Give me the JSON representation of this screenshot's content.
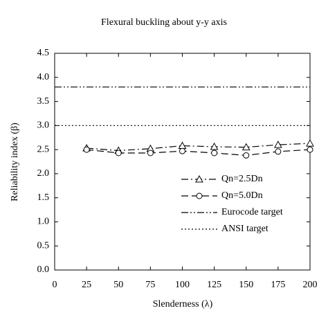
{
  "chart_data": {
    "type": "line",
    "title": "Flexural buckling about y-y axis",
    "x_label": "Slenderness (λ)",
    "y_label": "Reliability index (β)",
    "x": [
      25,
      50,
      75,
      100,
      125,
      150,
      175,
      200
    ],
    "series": [
      {
        "name": "Qn=2.5Dn",
        "color": "#000000",
        "marker": "triangle",
        "dash": "dashdot",
        "values": [
          2.53,
          2.48,
          2.52,
          2.58,
          2.56,
          2.55,
          2.6,
          2.63
        ]
      },
      {
        "name": "Qn=5.0Dn",
        "color": "#000000",
        "marker": "circle",
        "dash": "dashed",
        "values": [
          2.5,
          2.43,
          2.43,
          2.47,
          2.43,
          2.38,
          2.46,
          2.5
        ]
      }
    ],
    "reference_lines": [
      {
        "name": "Eurocode target",
        "value": 3.8,
        "dash": "dashdotdot"
      },
      {
        "name": "ANSI target",
        "value": 3.0,
        "dash": "dotted"
      }
    ],
    "xlim": [
      0,
      200
    ],
    "xticks": [
      0,
      25,
      50,
      75,
      100,
      125,
      150,
      175,
      200
    ],
    "ylim": [
      0,
      4.5
    ],
    "yticks": [
      {
        "value": 0,
        "label": "0.0"
      },
      0.5,
      {
        "value": 1,
        "label": "1.0"
      },
      1.5,
      {
        "value": 2,
        "label": "2.0"
      },
      2.5,
      {
        "value": 3,
        "label": "3.0"
      },
      3.5,
      {
        "value": 4,
        "label": "4.0"
      },
      4.5
    ],
    "legend_position": "lower right"
  }
}
